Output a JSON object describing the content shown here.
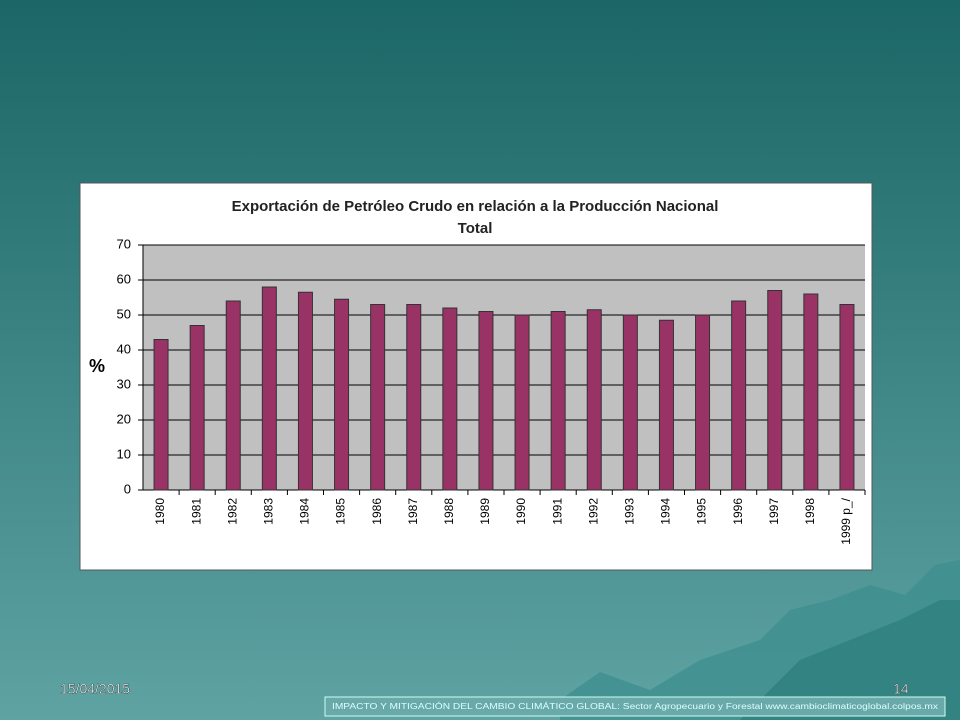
{
  "chart_data": {
    "type": "bar",
    "title": [
      "Exportación de Petróleo Crudo en relación a la Producción Nacional",
      "Total"
    ],
    "y_label": "%",
    "categories": [
      "1980",
      "1981",
      "1982",
      "1983",
      "1984",
      "1985",
      "1986",
      "1987",
      "1988",
      "1989",
      "1990",
      "1991",
      "1992",
      "1993",
      "1994",
      "1995",
      "1996",
      "1997",
      "1998",
      "1999 p_/"
    ],
    "values": [
      43,
      47,
      54,
      58,
      56.5,
      54.5,
      53,
      53,
      52,
      51,
      50,
      51,
      51.5,
      50,
      48.5,
      50,
      54,
      57,
      56,
      53
    ],
    "color": "#993366",
    "ylim": [
      0,
      70
    ],
    "yticks": [
      0,
      10,
      20,
      30,
      40,
      50,
      60,
      70
    ],
    "grid": true
  },
  "slide": {
    "date": "15/04/2015",
    "page_number": "14",
    "footer": "IMPACTO Y MITIGACIÓN DEL CAMBIO CLIMÁTICO GLOBAL: Sector Agropecuario y Forestal www.cambioclimaticoglobal.colpos.mx"
  }
}
